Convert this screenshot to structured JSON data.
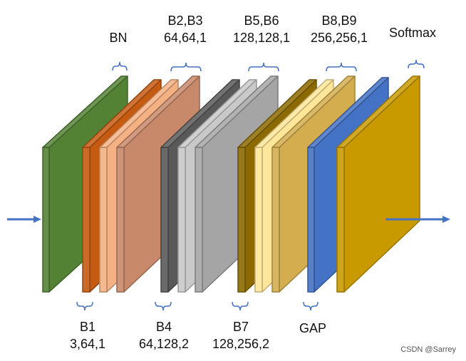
{
  "labels": {
    "bn": "BN",
    "b23_name": "B2,B3",
    "b23_shape": "64,64,1",
    "b56_name": "B5,B6",
    "b56_shape": "128,128,1",
    "b89_name": "B8,B9",
    "b89_shape": "256,256,1",
    "softmax": "Softmax",
    "b1_name": "B1",
    "b1_shape": "3,64,1",
    "b4_name": "B4",
    "b4_shape": "64,128,2",
    "b7_name": "B7",
    "b7_shape": "128,256,2",
    "gap": "GAP"
  },
  "watermark": "CSDN @Sarrey",
  "colors": {
    "input_green": "#548235",
    "orange": "#C55A11",
    "orange_light": "#F4B183",
    "orange_mid": "#C8896A",
    "gray_dark": "#595959",
    "gray_light": "#C9C9C9",
    "gray_mid": "#A5A5A5",
    "olive": "#8C6A00",
    "yellow_light": "#FFE699",
    "tan": "#D4AE4E",
    "blue": "#4472C4",
    "gold": "#C99A00",
    "arrow": "#4472C4",
    "bracket": "#4472C4"
  }
}
